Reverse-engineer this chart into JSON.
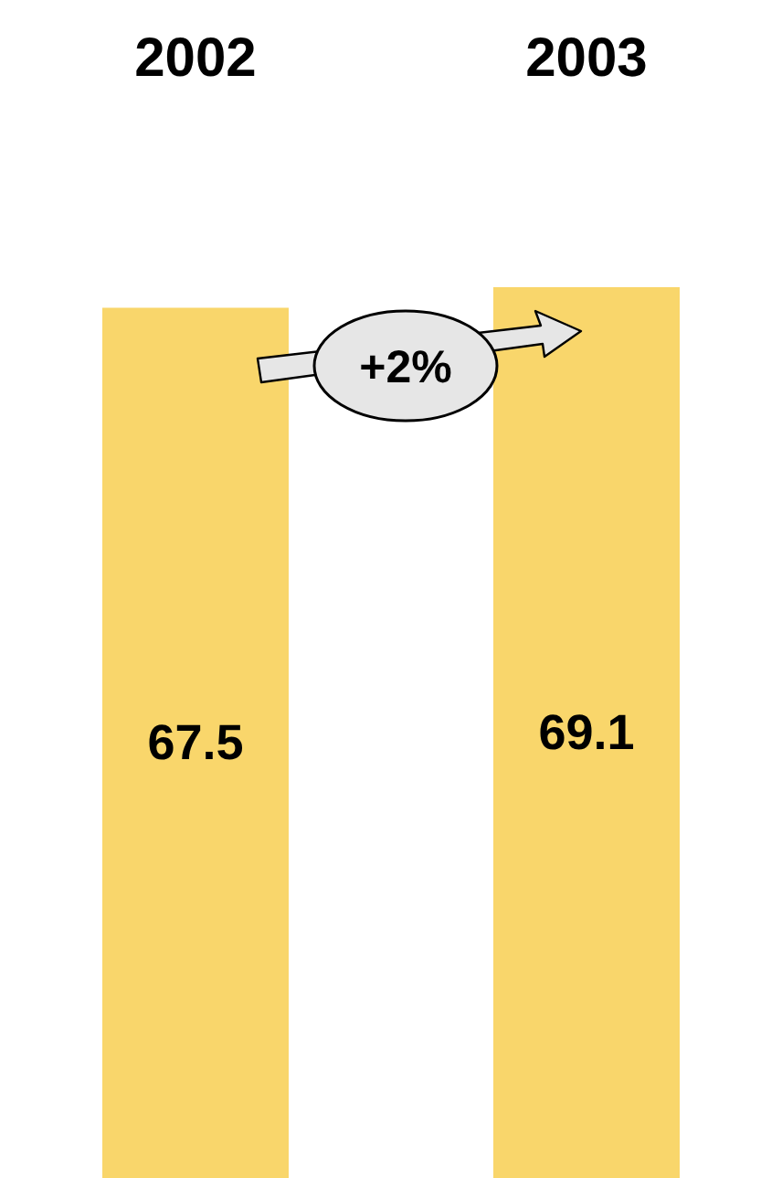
{
  "chart_data": {
    "type": "bar",
    "categories": [
      "2002",
      "2003"
    ],
    "values": [
      67.5,
      69.1
    ],
    "color": "#f9d66b",
    "data_labels": true,
    "annotations": [
      "+2%"
    ]
  }
}
